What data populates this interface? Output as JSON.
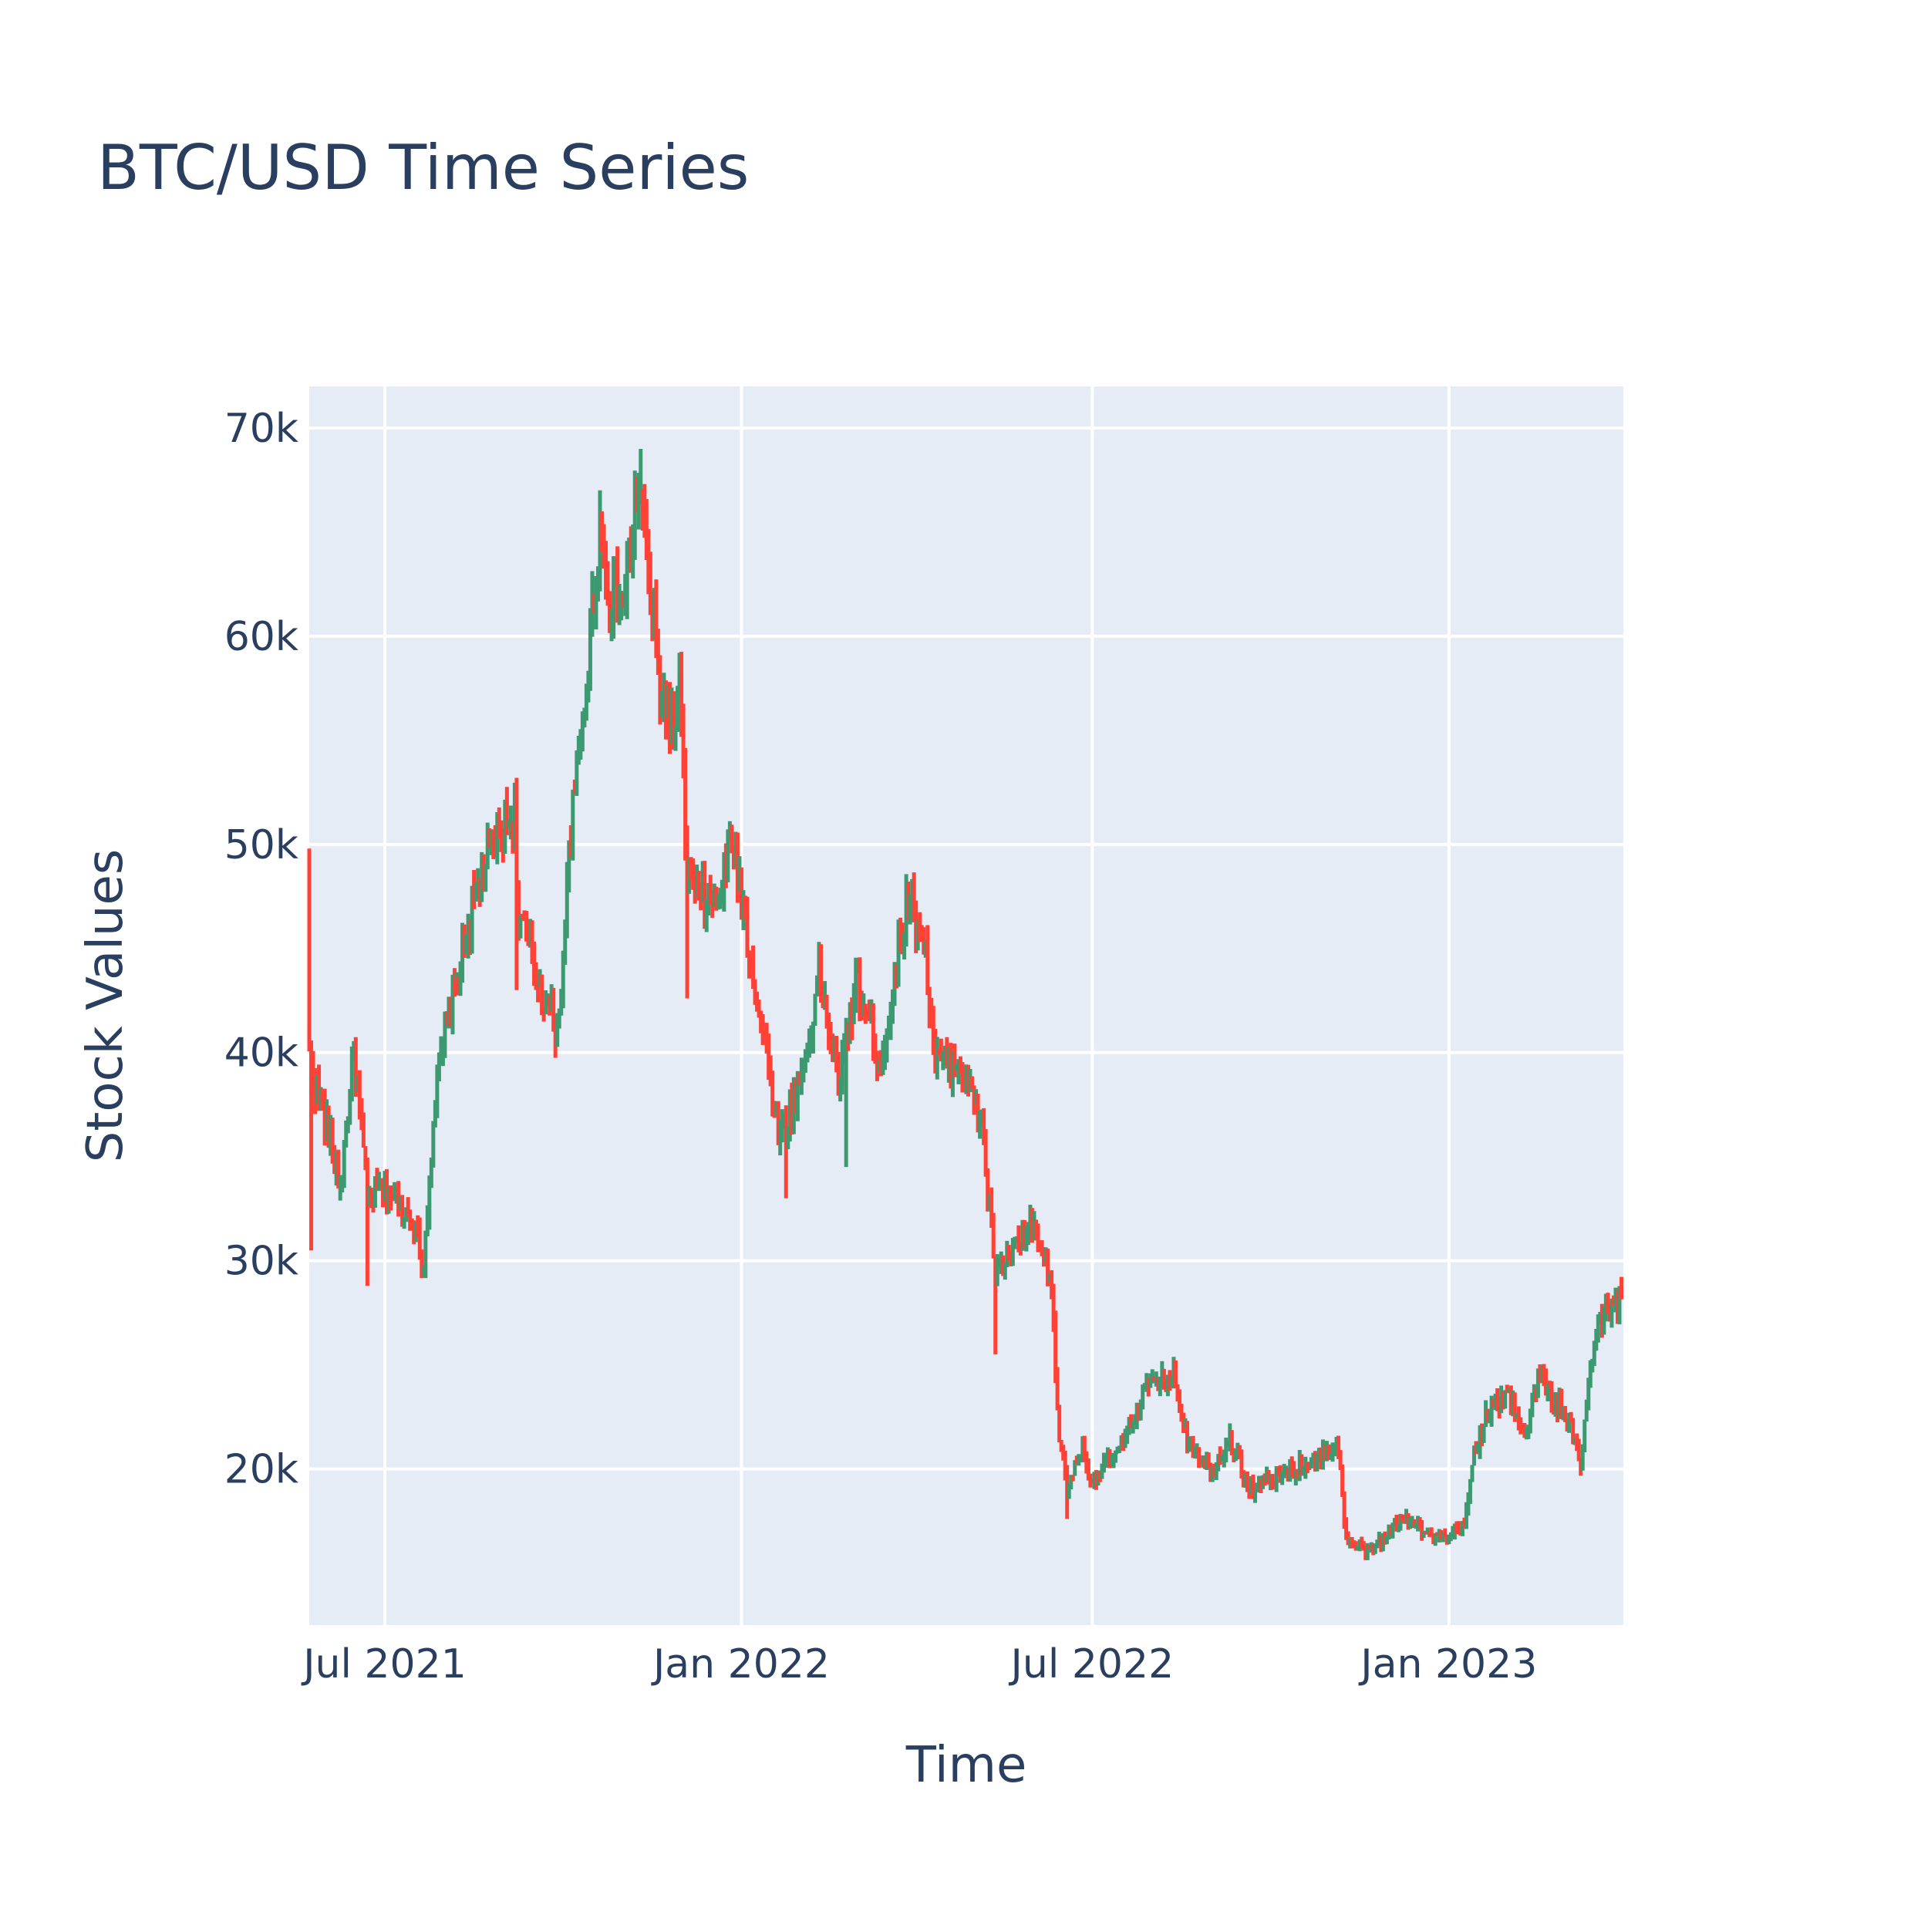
{
  "chart_data": {
    "type": "candlestick",
    "title": "BTC/USD Time Series",
    "xlabel": "Time",
    "ylabel": "Stock Values",
    "x_range": [
      "2021-05-23",
      "2023-04-01"
    ],
    "ylim": [
      12500,
      72000
    ],
    "grid": true,
    "legend": "none",
    "x_ticks": [
      {
        "date": "2021-07-01",
        "label": "Jul 2021"
      },
      {
        "date": "2022-01-01",
        "label": "Jan 2022"
      },
      {
        "date": "2022-07-01",
        "label": "Jul 2022"
      },
      {
        "date": "2023-01-01",
        "label": "Jan 2023"
      }
    ],
    "y_ticks": [
      {
        "value": 20000,
        "label": "20k"
      },
      {
        "value": 30000,
        "label": "30k"
      },
      {
        "value": 40000,
        "label": "40k"
      },
      {
        "value": 50000,
        "label": "50k"
      },
      {
        "value": 60000,
        "label": "60k"
      },
      {
        "value": 70000,
        "label": "70k"
      }
    ],
    "close_path": [
      [
        "2021-05-23",
        40000
      ],
      [
        "2021-05-26",
        38500
      ],
      [
        "2021-06-01",
        36500
      ],
      [
        "2021-06-08",
        33500
      ],
      [
        "2021-06-15",
        40000
      ],
      [
        "2021-06-22",
        33000
      ],
      [
        "2021-07-01",
        33500
      ],
      [
        "2021-07-15",
        32000
      ],
      [
        "2021-07-21",
        29800
      ],
      [
        "2021-07-26",
        37000
      ],
      [
        "2021-08-01",
        41000
      ],
      [
        "2021-08-14",
        46500
      ],
      [
        "2021-08-23",
        49500
      ],
      [
        "2021-09-06",
        51500
      ],
      [
        "2021-09-08",
        46500
      ],
      [
        "2021-09-20",
        43000
      ],
      [
        "2021-09-28",
        41000
      ],
      [
        "2021-10-05",
        50500
      ],
      [
        "2021-10-15",
        60000
      ],
      [
        "2021-10-20",
        65500
      ],
      [
        "2021-10-25",
        62000
      ],
      [
        "2021-11-01",
        61500
      ],
      [
        "2021-11-09",
        67500
      ],
      [
        "2021-11-15",
        62000
      ],
      [
        "2021-11-20",
        57500
      ],
      [
        "2021-11-27",
        55500
      ],
      [
        "2021-11-30",
        57500
      ],
      [
        "2021-12-04",
        48500
      ],
      [
        "2021-12-10",
        47500
      ],
      [
        "2021-12-20",
        47000
      ],
      [
        "2021-12-27",
        50500
      ],
      [
        "2022-01-01",
        47500
      ],
      [
        "2022-01-10",
        42000
      ],
      [
        "2022-01-21",
        36000
      ],
      [
        "2022-01-31",
        38500
      ],
      [
        "2022-02-10",
        43500
      ],
      [
        "2022-02-21",
        38500
      ],
      [
        "2022-03-01",
        43500
      ],
      [
        "2022-03-14",
        39500
      ],
      [
        "2022-03-28",
        47500
      ],
      [
        "2022-04-05",
        45500
      ],
      [
        "2022-04-11",
        39500
      ],
      [
        "2022-04-24",
        39500
      ],
      [
        "2022-05-05",
        36500
      ],
      [
        "2022-05-12",
        29500
      ],
      [
        "2022-05-31",
        31500
      ],
      [
        "2022-06-10",
        29000
      ],
      [
        "2022-06-13",
        22500
      ],
      [
        "2022-06-18",
        19000
      ],
      [
        "2022-06-25",
        21000
      ],
      [
        "2022-07-01",
        19500
      ],
      [
        "2022-07-15",
        20800
      ],
      [
        "2022-07-28",
        23800
      ],
      [
        "2022-08-12",
        24400
      ],
      [
        "2022-08-19",
        21500
      ],
      [
        "2022-08-31",
        20000
      ],
      [
        "2022-09-10",
        21500
      ],
      [
        "2022-09-20",
        19000
      ],
      [
        "2022-10-01",
        19500
      ],
      [
        "2022-10-26",
        20500
      ],
      [
        "2022-11-05",
        21200
      ],
      [
        "2022-11-09",
        16500
      ],
      [
        "2022-11-21",
        16000
      ],
      [
        "2022-12-01",
        17000
      ],
      [
        "2022-12-13",
        17800
      ],
      [
        "2022-12-20",
        16800
      ],
      [
        "2022-12-31",
        16600
      ],
      [
        "2023-01-09",
        17200
      ],
      [
        "2023-01-14",
        20800
      ],
      [
        "2023-01-21",
        22700
      ],
      [
        "2023-02-01",
        23500
      ],
      [
        "2023-02-10",
        21700
      ],
      [
        "2023-02-16",
        24500
      ],
      [
        "2023-02-25",
        23200
      ],
      [
        "2023-03-04",
        22300
      ],
      [
        "2023-03-10",
        20200
      ],
      [
        "2023-03-17",
        26500
      ],
      [
        "2023-03-23",
        27500
      ],
      [
        "2023-03-31",
        28200
      ]
    ],
    "spikes": [
      {
        "date": "2021-05-24",
        "low": 30500
      },
      {
        "date": "2021-06-22",
        "low": 28800
      },
      {
        "date": "2021-12-04",
        "low": 42600
      },
      {
        "date": "2022-01-24",
        "low": 33000
      },
      {
        "date": "2022-02-24",
        "low": 34500
      },
      {
        "date": "2022-06-18",
        "low": 17600
      },
      {
        "date": "2022-05-12",
        "low": 25500
      },
      {
        "date": "2021-09-07",
        "low": 43000
      },
      {
        "date": "2021-11-10",
        "high": 69000
      },
      {
        "date": "2021-05-23",
        "high": 49800
      }
    ],
    "colors": {
      "increasing": "#3d9970",
      "decreasing": "#ff4136",
      "plot_background": "#e5ecf6",
      "grid": "#ffffff",
      "text": "#2a3f5f"
    }
  }
}
